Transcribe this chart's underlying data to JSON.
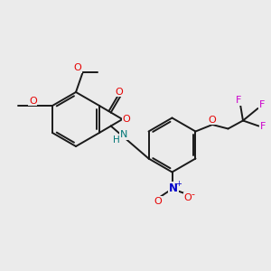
{
  "bg_color": "#ebebeb",
  "bond_color": "#1a1a1a",
  "oxygen_color": "#e60000",
  "nitrogen_color": "#0000cc",
  "fluorine_color": "#cc00cc",
  "nh_color": "#007777",
  "line_width": 1.4,
  "figsize": [
    3.0,
    3.0
  ],
  "dpi": 100
}
